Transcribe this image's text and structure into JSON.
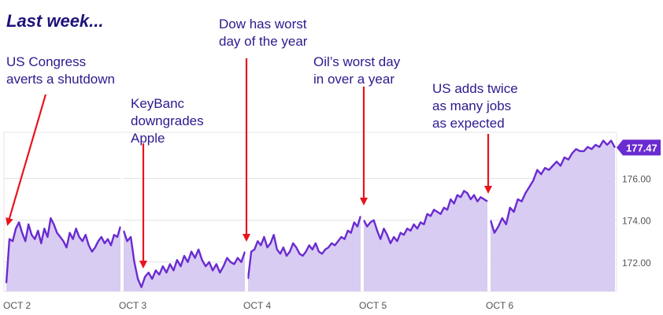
{
  "chart_data": {
    "type": "area",
    "title": "Last week...",
    "xlabel": "",
    "ylabel": "",
    "ylim": [
      170.6,
      178.2
    ],
    "y_ticks": [
      "172.00",
      "174.00",
      "176.00"
    ],
    "x_ticks": [
      "OCT 2",
      "OCT 3",
      "OCT 4",
      "OCT 5",
      "OCT 6"
    ],
    "last_value_label": "177.47",
    "grid": true,
    "colors": {
      "line": "#6a2bd0",
      "fill": "#d8ccf2",
      "annotation_arrow": "#e8141c",
      "annotation_text": "#2c1a8e",
      "badge": "#6a2bd0"
    },
    "series": [
      {
        "days": [
          {
            "label": "OCT 2",
            "values": [
              171.0,
              173.1,
              173.0,
              173.6,
              173.9,
              173.4,
              173.0,
              173.8,
              173.3,
              173.1,
              173.5,
              172.9,
              173.6,
              173.2,
              174.1,
              173.8,
              173.4,
              173.2,
              173.0,
              172.7,
              173.4,
              173.1,
              173.6,
              173.2,
              173.0,
              173.3,
              172.8,
              172.5,
              172.7,
              173.0,
              173.2,
              172.9,
              173.1,
              172.8,
              173.3,
              173.2,
              173.7
            ]
          },
          {
            "label": "OCT 3",
            "values": [
              173.5,
              173.0,
              173.2,
              172.0,
              171.2,
              170.8,
              171.3,
              171.5,
              171.2,
              171.6,
              171.4,
              171.8,
              171.5,
              171.9,
              171.6,
              172.1,
              171.8,
              172.3,
              172.0,
              172.5,
              172.2,
              172.6,
              172.1,
              171.8,
              172.0,
              171.6,
              171.9,
              171.5,
              171.8,
              172.2,
              172.0,
              171.9,
              172.2,
              172.0,
              172.5
            ]
          },
          {
            "label": "OCT 4",
            "values": [
              171.2,
              172.5,
              172.6,
              173.0,
              172.8,
              173.2,
              172.7,
              172.9,
              173.3,
              172.6,
              172.4,
              172.7,
              172.3,
              172.5,
              172.9,
              172.7,
              172.4,
              172.3,
              172.5,
              172.8,
              172.6,
              172.9,
              172.5,
              172.4,
              172.6,
              172.7,
              172.9,
              172.8,
              173.0,
              173.2,
              173.1,
              173.5,
              173.4,
              173.9,
              173.7,
              174.2
            ]
          },
          {
            "label": "OCT 5",
            "values": [
              174.0,
              173.7,
              173.9,
              174.0,
              173.5,
              173.1,
              173.6,
              173.3,
              172.9,
              173.2,
              173.0,
              173.4,
              173.3,
              173.6,
              173.5,
              173.8,
              173.6,
              173.9,
              173.8,
              174.3,
              174.2,
              174.5,
              174.4,
              174.3,
              174.6,
              174.5,
              175.0,
              174.8,
              175.2,
              175.1,
              175.4,
              175.3,
              175.0,
              175.2,
              174.9,
              175.1,
              175.0,
              174.9
            ]
          },
          {
            "label": "OCT 6",
            "values": [
              174.0,
              173.4,
              173.7,
              174.1,
              173.8,
              174.6,
              174.4,
              175.0,
              174.9,
              175.3,
              175.6,
              175.9,
              176.4,
              176.2,
              176.5,
              176.4,
              176.6,
              176.8,
              176.6,
              177.0,
              176.9,
              177.2,
              177.4,
              177.3,
              177.3,
              177.5,
              177.4,
              177.6,
              177.5,
              177.8,
              177.6,
              177.8,
              177.47
            ]
          }
        ]
      }
    ],
    "annotations": [
      {
        "day": "OCT 2",
        "text": "US Congress\naverts a shutdown"
      },
      {
        "day": "OCT 3",
        "text": "KeyBanc\ndowngrades\nApple"
      },
      {
        "day": "OCT 4",
        "text": "Dow has worst\nday of the year"
      },
      {
        "day": "OCT 5",
        "text": "Oil’s worst day\nin over a year"
      },
      {
        "day": "OCT 6",
        "text": "US adds twice\nas many jobs\nas expected"
      }
    ]
  }
}
